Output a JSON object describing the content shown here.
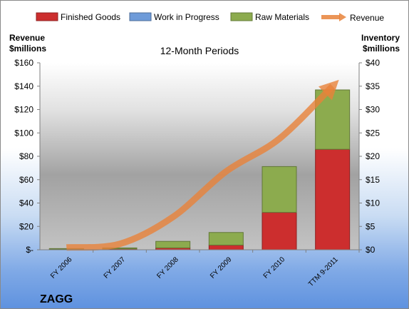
{
  "chart_data": {
    "type": "bar",
    "title": "12-Month Periods",
    "company": "ZAGG",
    "categories": [
      "FY 2006",
      "FY 2007",
      "FY 2008",
      "FY 2009",
      "FY 2010",
      "TTM 9-2011"
    ],
    "left_axis": {
      "label_line1": "Revenue",
      "label_line2": "$millions",
      "ylim": [
        0,
        160
      ],
      "ticks": [
        0,
        20,
        40,
        60,
        80,
        100,
        120,
        140,
        160
      ],
      "tick_labels": [
        "$-",
        "$20",
        "$40",
        "$60",
        "$80",
        "$100",
        "$120",
        "$140",
        "$160"
      ]
    },
    "right_axis": {
      "label_line1": "Inventory",
      "label_line2": "$millions",
      "ylim": [
        0,
        40
      ],
      "ticks": [
        0,
        5,
        10,
        15,
        20,
        25,
        30,
        35,
        40
      ],
      "tick_labels": [
        "$0",
        "$5",
        "$10",
        "$15",
        "$20",
        "$25",
        "$30",
        "$35",
        "$40"
      ]
    },
    "series": [
      {
        "name": "Finished Goods",
        "kind": "stacked-bar",
        "axis": "right",
        "color": "#cc2e2e",
        "values": [
          0.1,
          0.2,
          0.4,
          1.0,
          8.0,
          21.5
        ]
      },
      {
        "name": "Work in Progress",
        "kind": "stacked-bar",
        "axis": "right",
        "color": "#6e9bd9",
        "values": [
          0,
          0,
          0,
          0,
          0,
          0
        ]
      },
      {
        "name": "Raw Materials",
        "kind": "stacked-bar",
        "axis": "right",
        "color": "#8cab4e",
        "values": [
          0.1,
          0.2,
          1.4,
          2.7,
          9.8,
          12.7
        ]
      },
      {
        "name": "Revenue",
        "kind": "line",
        "axis": "left",
        "color": "#e8823a",
        "values": [
          2,
          5,
          28,
          67,
          95,
          140
        ]
      }
    ],
    "grid": false,
    "legend": "top"
  }
}
